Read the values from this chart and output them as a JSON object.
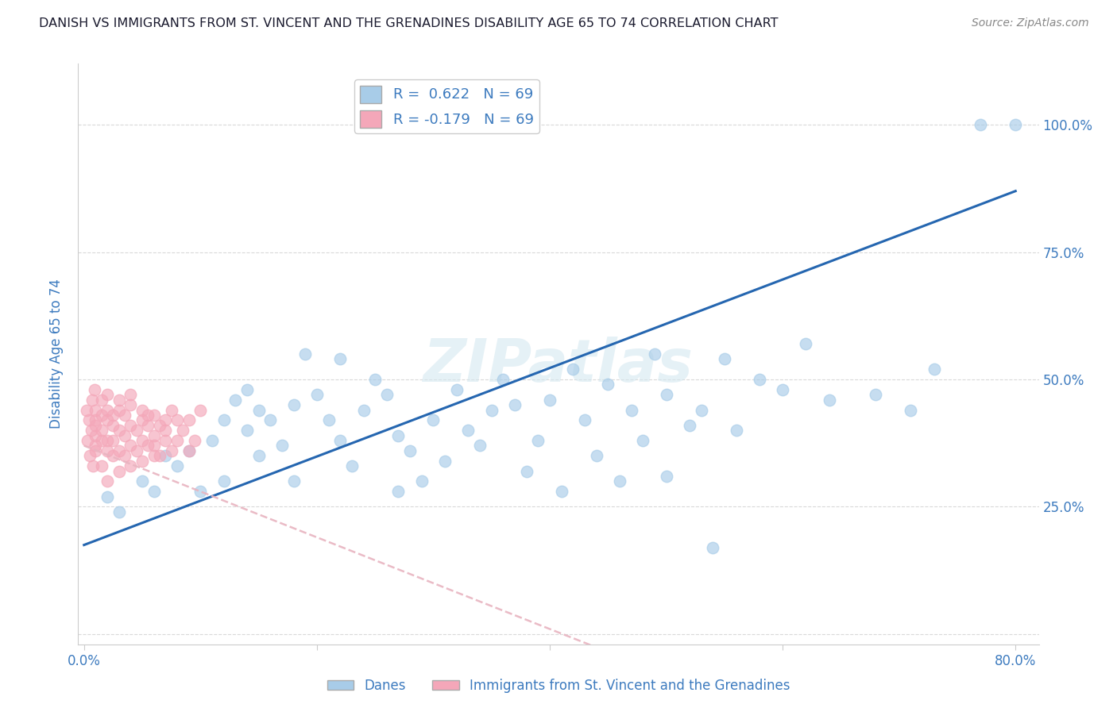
{
  "title": "DANISH VS IMMIGRANTS FROM ST. VINCENT AND THE GRENADINES DISABILITY AGE 65 TO 74 CORRELATION CHART",
  "source": "Source: ZipAtlas.com",
  "ylabel": "Disability Age 65 to 74",
  "xlim": [
    -0.005,
    0.82
  ],
  "ylim": [
    -0.02,
    1.12
  ],
  "xtick_positions": [
    0.0,
    0.2,
    0.4,
    0.6,
    0.8
  ],
  "xticklabels": [
    "0.0%",
    "",
    "",
    "",
    "80.0%"
  ],
  "ytick_positions": [
    0.0,
    0.25,
    0.5,
    0.75,
    1.0
  ],
  "yticklabels_right": [
    "",
    "25.0%",
    "50.0%",
    "75.0%",
    "100.0%"
  ],
  "blue_R": 0.622,
  "pink_R": -0.179,
  "N": 69,
  "blue_color": "#a8cce8",
  "pink_color": "#f4a7b9",
  "blue_line_color": "#2566b0",
  "pink_line_color": "#e8b4c0",
  "grid_color": "#d0d0d0",
  "title_color": "#1a1a2e",
  "axis_label_color": "#3d7bbf",
  "legend_text_color": "#3d7bbf",
  "watermark_color": "#d5e8f0",
  "blue_line_x0": 0.0,
  "blue_line_y0": 0.175,
  "blue_line_x1": 0.8,
  "blue_line_y1": 0.87,
  "pink_line_x0": 0.0,
  "pink_line_y0": 0.37,
  "pink_line_x1": 0.1,
  "pink_line_y1": 0.28,
  "danes_x": [
    0.02,
    0.03,
    0.05,
    0.06,
    0.07,
    0.08,
    0.09,
    0.1,
    0.11,
    0.12,
    0.12,
    0.13,
    0.14,
    0.14,
    0.15,
    0.15,
    0.16,
    0.17,
    0.18,
    0.18,
    0.19,
    0.2,
    0.21,
    0.22,
    0.22,
    0.23,
    0.24,
    0.25,
    0.26,
    0.27,
    0.27,
    0.28,
    0.29,
    0.3,
    0.31,
    0.32,
    0.33,
    0.34,
    0.35,
    0.36,
    0.37,
    0.38,
    0.39,
    0.4,
    0.41,
    0.42,
    0.43,
    0.44,
    0.45,
    0.46,
    0.47,
    0.48,
    0.49,
    0.5,
    0.5,
    0.52,
    0.53,
    0.54,
    0.55,
    0.56,
    0.58,
    0.6,
    0.62,
    0.64,
    0.68,
    0.71,
    0.73,
    0.77,
    0.8
  ],
  "danes_y": [
    0.27,
    0.24,
    0.3,
    0.28,
    0.35,
    0.33,
    0.36,
    0.28,
    0.38,
    0.42,
    0.3,
    0.46,
    0.4,
    0.48,
    0.44,
    0.35,
    0.42,
    0.37,
    0.45,
    0.3,
    0.55,
    0.47,
    0.42,
    0.38,
    0.54,
    0.33,
    0.44,
    0.5,
    0.47,
    0.39,
    0.28,
    0.36,
    0.3,
    0.42,
    0.34,
    0.48,
    0.4,
    0.37,
    0.44,
    0.5,
    0.45,
    0.32,
    0.38,
    0.46,
    0.28,
    0.52,
    0.42,
    0.35,
    0.49,
    0.3,
    0.44,
    0.38,
    0.55,
    0.31,
    0.47,
    0.41,
    0.44,
    0.17,
    0.54,
    0.4,
    0.5,
    0.48,
    0.57,
    0.46,
    0.47,
    0.44,
    0.52,
    1.0,
    1.0
  ],
  "pink_x": [
    0.002,
    0.003,
    0.004,
    0.005,
    0.006,
    0.007,
    0.008,
    0.009,
    0.01,
    0.01,
    0.01,
    0.01,
    0.01,
    0.01,
    0.015,
    0.015,
    0.015,
    0.015,
    0.015,
    0.02,
    0.02,
    0.02,
    0.02,
    0.02,
    0.02,
    0.025,
    0.025,
    0.025,
    0.025,
    0.03,
    0.03,
    0.03,
    0.03,
    0.03,
    0.035,
    0.035,
    0.035,
    0.04,
    0.04,
    0.04,
    0.04,
    0.04,
    0.045,
    0.045,
    0.05,
    0.05,
    0.05,
    0.05,
    0.055,
    0.055,
    0.055,
    0.06,
    0.06,
    0.06,
    0.06,
    0.065,
    0.065,
    0.07,
    0.07,
    0.07,
    0.075,
    0.075,
    0.08,
    0.08,
    0.085,
    0.09,
    0.09,
    0.095,
    0.1
  ],
  "pink_y": [
    0.44,
    0.38,
    0.42,
    0.35,
    0.4,
    0.46,
    0.33,
    0.48,
    0.36,
    0.42,
    0.39,
    0.44,
    0.37,
    0.41,
    0.43,
    0.38,
    0.46,
    0.33,
    0.4,
    0.42,
    0.36,
    0.44,
    0.3,
    0.47,
    0.38,
    0.41,
    0.35,
    0.43,
    0.38,
    0.4,
    0.36,
    0.44,
    0.32,
    0.46,
    0.39,
    0.43,
    0.35,
    0.41,
    0.37,
    0.45,
    0.33,
    0.47,
    0.4,
    0.36,
    0.42,
    0.38,
    0.44,
    0.34,
    0.41,
    0.37,
    0.43,
    0.39,
    0.35,
    0.43,
    0.37,
    0.41,
    0.35,
    0.4,
    0.38,
    0.42,
    0.36,
    0.44,
    0.38,
    0.42,
    0.4,
    0.36,
    0.42,
    0.38,
    0.44
  ]
}
